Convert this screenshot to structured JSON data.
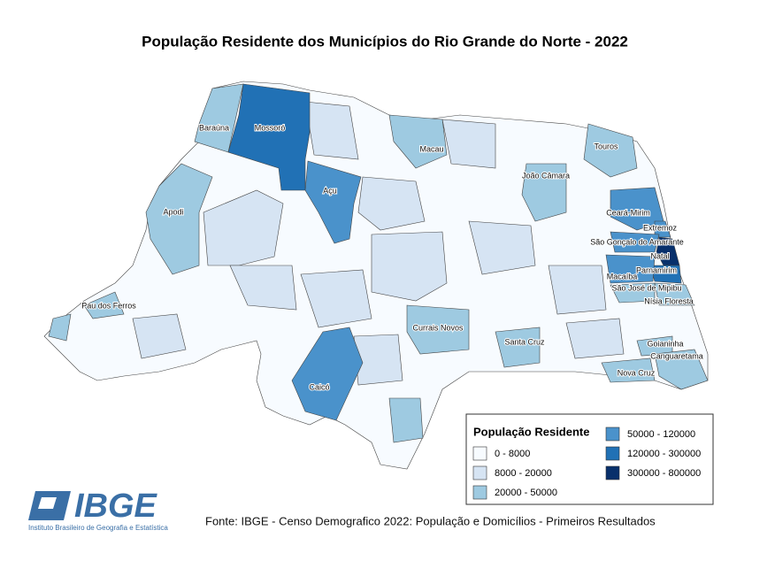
{
  "title": "População Residente dos Municípios do Rio Grande do Norte - 2022",
  "municipalities": [
    "Baraúna",
    "Mossoró",
    "Macau",
    "Touros",
    "João Câmara",
    "Apodi",
    "Açu",
    "Ceará-Mirim",
    "Extremoz",
    "São Gonçalo do Amarante",
    "Natal",
    "Parnamirim",
    "Macaíba",
    "São José de Mipibu",
    "Nísia Floresta",
    "Pau dos Ferros",
    "Currais Novos",
    "Santa Cruz",
    "Caicó",
    "Goianinha",
    "Canguaretama",
    "Nova Cruz"
  ],
  "legend": {
    "title": "População Residente",
    "classes": [
      {
        "label": "0 - 8000",
        "color": "#f7fbff"
      },
      {
        "label": "8000 - 20000",
        "color": "#d6e4f3"
      },
      {
        "label": "20000 - 50000",
        "color": "#9ecae1"
      },
      {
        "label": "50000 - 120000",
        "color": "#4a92cb"
      },
      {
        "label": "120000 - 300000",
        "color": "#2171b5"
      },
      {
        "label": "300000 - 800000",
        "color": "#08306b"
      }
    ]
  },
  "source": "Fonte: IBGE - Censo Demografico 2022: População e Domicílios - Primeiros Resultados",
  "logo": {
    "name": "IBGE",
    "subtitle": "Instituto Brasileiro de Geografia e Estatística"
  }
}
